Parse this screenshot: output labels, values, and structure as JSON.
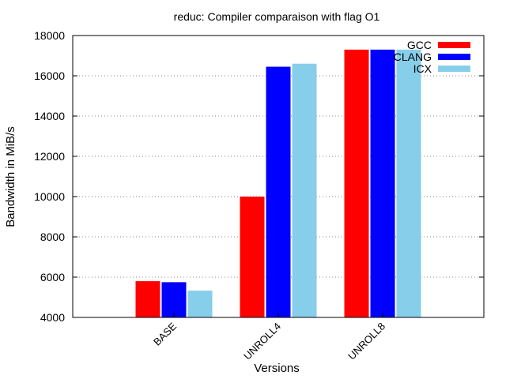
{
  "chart_data": {
    "type": "bar",
    "title": "reduc: Compiler comparaison with flag O1",
    "xlabel": "Versions",
    "ylabel": "Bandwidth in MiB/s",
    "ylim": [
      4000,
      18000
    ],
    "yticks": [
      4000,
      6000,
      8000,
      10000,
      12000,
      14000,
      16000,
      18000
    ],
    "grid": "horizontal dotted",
    "legend_position": "top-right",
    "categories": [
      "BASE",
      "UNROLL4",
      "UNROLL8"
    ],
    "series": [
      {
        "name": "GCC",
        "color": "#ff0000",
        "values": [
          5800,
          10000,
          17300
        ]
      },
      {
        "name": "CLANG",
        "color": "#0000ff",
        "values": [
          5750,
          16450,
          17300
        ]
      },
      {
        "name": "ICX",
        "color": "#87ceeb",
        "values": [
          5330,
          16600,
          17300
        ]
      }
    ]
  }
}
